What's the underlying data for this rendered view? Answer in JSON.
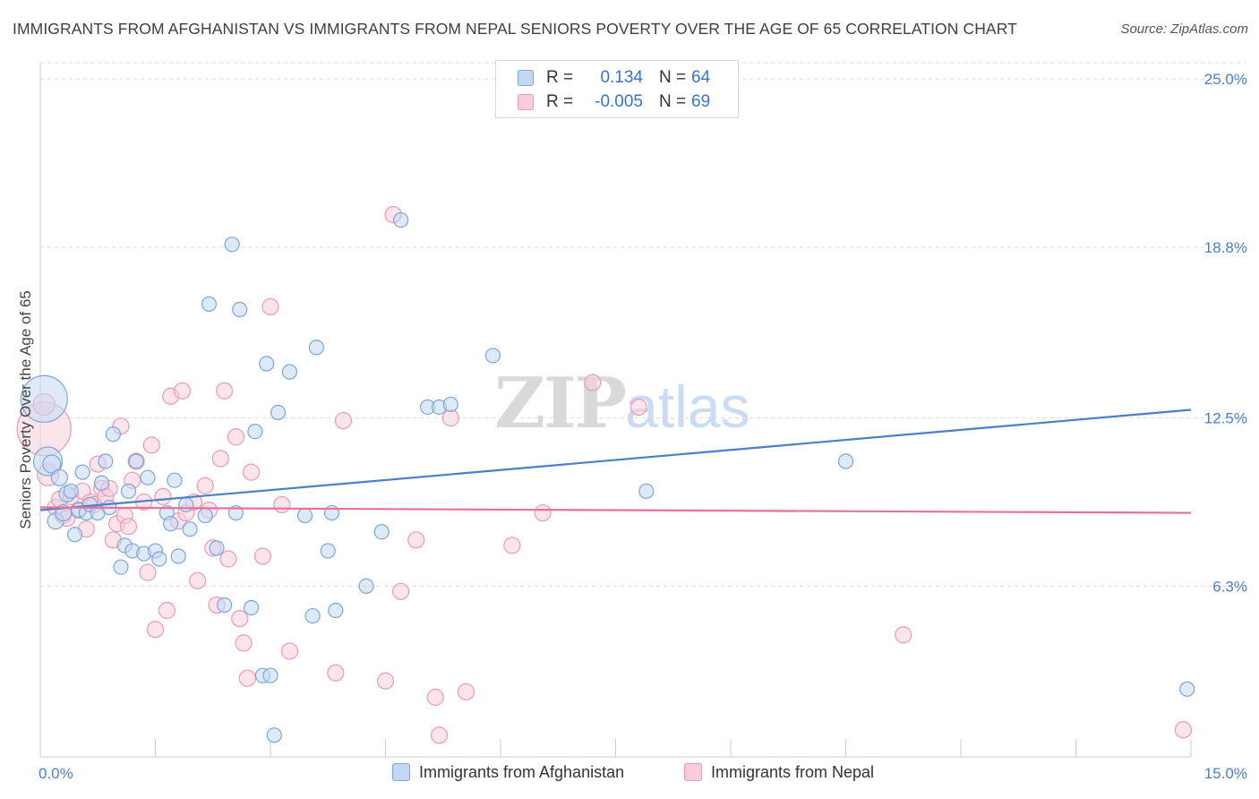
{
  "title": "IMMIGRANTS FROM AFGHANISTAN VS IMMIGRANTS FROM NEPAL SENIORS POVERTY OVER THE AGE OF 65 CORRELATION CHART",
  "source": "Source: ZipAtlas.com",
  "watermark": {
    "zip": "ZIP",
    "atlas": "atlas"
  },
  "legend": [
    {
      "r_label": "R =",
      "r_value": "0.134",
      "n_label": "N =",
      "n_value": "64",
      "color": "#7aa6e0",
      "fill": "#c5d8f3"
    },
    {
      "r_label": "R =",
      "r_value": "-0.005",
      "n_label": "N =",
      "n_value": "69",
      "color": "#ee9ab4",
      "fill": "#f8cdd9"
    }
  ],
  "bottom_legend": [
    "Immigrants from Afghanistan",
    "Immigrants from Nepal"
  ],
  "chart_data": {
    "type": "scatter",
    "title": "IMMIGRANTS FROM AFGHANISTAN VS IMMIGRANTS FROM NEPAL SENIORS POVERTY OVER THE AGE OF 65 CORRELATION CHART",
    "xlabel": "",
    "ylabel": "Seniors Poverty Over the Age of 65",
    "xlim": [
      0,
      15
    ],
    "ylim": [
      0,
      25.6
    ],
    "x_tick_labels": [
      "0.0%",
      "15.0%"
    ],
    "y_ticks": [
      6.3,
      12.5,
      18.8,
      25.0
    ],
    "y_tick_labels": [
      "6.3%",
      "12.5%",
      "18.8%",
      "25.0%"
    ],
    "grid": "horizontal dashed",
    "legend_position": "top-center",
    "series": [
      {
        "name": "Immigrants from Afghanistan",
        "color": "#4a7fcf",
        "fill": "#c5d8f3",
        "trend": {
          "x": [
            0,
            15
          ],
          "y": [
            9.1,
            12.8
          ]
        },
        "points": [
          [
            0.05,
            13.2,
            26
          ],
          [
            0.1,
            10.9,
            16
          ],
          [
            0.15,
            10.8,
            10
          ],
          [
            0.2,
            8.7,
            9
          ],
          [
            0.25,
            10.3,
            9
          ],
          [
            0.3,
            9.0,
            9
          ],
          [
            0.35,
            9.7,
            9
          ],
          [
            0.4,
            9.8,
            8
          ],
          [
            0.45,
            8.2,
            8
          ],
          [
            0.5,
            9.1,
            8
          ],
          [
            0.55,
            10.5,
            8
          ],
          [
            0.6,
            9.0,
            8
          ],
          [
            0.65,
            9.3,
            8
          ],
          [
            0.75,
            9.0,
            8
          ],
          [
            0.8,
            10.1,
            8
          ],
          [
            0.85,
            10.9,
            8
          ],
          [
            0.9,
            9.2,
            8
          ],
          [
            0.95,
            11.9,
            8
          ],
          [
            1.05,
            7.0,
            8
          ],
          [
            1.1,
            7.8,
            8
          ],
          [
            1.15,
            9.8,
            8
          ],
          [
            1.2,
            7.6,
            8
          ],
          [
            1.25,
            10.9,
            8
          ],
          [
            1.35,
            7.5,
            8
          ],
          [
            1.4,
            10.3,
            8
          ],
          [
            1.5,
            7.6,
            8
          ],
          [
            1.55,
            7.3,
            8
          ],
          [
            1.65,
            9.0,
            8
          ],
          [
            1.7,
            8.6,
            8
          ],
          [
            1.75,
            10.2,
            8
          ],
          [
            1.8,
            7.4,
            8
          ],
          [
            1.9,
            9.3,
            8
          ],
          [
            1.95,
            8.4,
            8
          ],
          [
            2.15,
            8.9,
            8
          ],
          [
            2.2,
            16.7,
            8
          ],
          [
            2.3,
            7.7,
            8
          ],
          [
            2.4,
            5.6,
            8
          ],
          [
            2.5,
            18.9,
            8
          ],
          [
            2.55,
            9.0,
            8
          ],
          [
            2.6,
            16.5,
            8
          ],
          [
            2.75,
            5.5,
            8
          ],
          [
            2.8,
            12.0,
            8
          ],
          [
            2.9,
            3.0,
            8
          ],
          [
            2.95,
            14.5,
            8
          ],
          [
            3.0,
            3.0,
            8
          ],
          [
            3.05,
            0.8,
            8
          ],
          [
            3.1,
            12.7,
            8
          ],
          [
            3.25,
            14.2,
            8
          ],
          [
            3.45,
            8.9,
            8
          ],
          [
            3.55,
            5.2,
            8
          ],
          [
            3.6,
            15.1,
            8
          ],
          [
            3.75,
            7.6,
            8
          ],
          [
            3.8,
            9.0,
            8
          ],
          [
            3.85,
            5.4,
            8
          ],
          [
            4.25,
            6.3,
            8
          ],
          [
            4.45,
            8.3,
            8
          ],
          [
            4.7,
            19.8,
            8
          ],
          [
            5.05,
            12.9,
            8
          ],
          [
            5.2,
            12.9,
            8
          ],
          [
            5.35,
            13.0,
            8
          ],
          [
            5.9,
            14.8,
            8
          ],
          [
            7.9,
            9.8,
            8
          ],
          [
            10.5,
            10.9,
            8
          ],
          [
            14.95,
            2.5,
            8
          ]
        ]
      },
      {
        "name": "Immigrants from Nepal",
        "color": "#e8709a",
        "fill": "#f8cdd9",
        "trend": {
          "x": [
            0,
            15
          ],
          "y": [
            9.2,
            9.0
          ]
        },
        "points": [
          [
            0.05,
            12.1,
            30
          ],
          [
            0.05,
            13.0,
            12
          ],
          [
            0.1,
            10.4,
            12
          ],
          [
            0.2,
            9.2,
            9
          ],
          [
            0.25,
            9.5,
            9
          ],
          [
            0.3,
            8.9,
            9
          ],
          [
            0.35,
            8.8,
            9
          ],
          [
            0.4,
            9.6,
            9
          ],
          [
            0.5,
            9.1,
            9
          ],
          [
            0.55,
            9.8,
            9
          ],
          [
            0.6,
            8.4,
            9
          ],
          [
            0.65,
            9.4,
            9
          ],
          [
            0.7,
            9.3,
            9
          ],
          [
            0.75,
            10.8,
            9
          ],
          [
            0.8,
            9.9,
            9
          ],
          [
            0.85,
            9.6,
            9
          ],
          [
            0.9,
            9.9,
            9
          ],
          [
            0.95,
            8.0,
            9
          ],
          [
            1.0,
            8.6,
            9
          ],
          [
            1.05,
            12.2,
            9
          ],
          [
            1.1,
            8.9,
            9
          ],
          [
            1.15,
            8.5,
            9
          ],
          [
            1.2,
            10.2,
            9
          ],
          [
            1.25,
            10.9,
            9
          ],
          [
            1.35,
            9.4,
            9
          ],
          [
            1.4,
            6.8,
            9
          ],
          [
            1.45,
            11.5,
            9
          ],
          [
            1.5,
            4.7,
            9
          ],
          [
            1.6,
            9.6,
            9
          ],
          [
            1.65,
            5.4,
            9
          ],
          [
            1.7,
            13.3,
            9
          ],
          [
            1.8,
            8.7,
            9
          ],
          [
            1.85,
            13.5,
            9
          ],
          [
            1.9,
            9.0,
            9
          ],
          [
            2.0,
            9.4,
            9
          ],
          [
            2.05,
            6.5,
            9
          ],
          [
            2.15,
            10.0,
            9
          ],
          [
            2.2,
            9.1,
            9
          ],
          [
            2.25,
            7.7,
            9
          ],
          [
            2.3,
            5.6,
            9
          ],
          [
            2.35,
            11.0,
            9
          ],
          [
            2.4,
            13.5,
            9
          ],
          [
            2.45,
            7.3,
            9
          ],
          [
            2.55,
            11.8,
            9
          ],
          [
            2.6,
            5.1,
            9
          ],
          [
            2.65,
            4.2,
            9
          ],
          [
            2.7,
            2.9,
            9
          ],
          [
            2.75,
            10.5,
            9
          ],
          [
            2.9,
            7.4,
            9
          ],
          [
            3.0,
            16.6,
            9
          ],
          [
            3.15,
            9.3,
            9
          ],
          [
            3.25,
            3.9,
            9
          ],
          [
            3.85,
            3.1,
            9
          ],
          [
            3.95,
            12.4,
            9
          ],
          [
            4.5,
            2.8,
            9
          ],
          [
            4.6,
            20.0,
            9
          ],
          [
            4.7,
            6.1,
            9
          ],
          [
            4.9,
            8.0,
            9
          ],
          [
            5.15,
            2.2,
            9
          ],
          [
            5.2,
            0.8,
            9
          ],
          [
            5.35,
            12.5,
            9
          ],
          [
            5.55,
            2.4,
            9
          ],
          [
            6.15,
            7.8,
            9
          ],
          [
            6.55,
            9.0,
            9
          ],
          [
            7.2,
            13.8,
            9
          ],
          [
            7.8,
            12.9,
            9
          ],
          [
            8.1,
            24.6,
            9
          ],
          [
            11.25,
            4.5,
            9
          ],
          [
            14.9,
            1.0,
            9
          ]
        ]
      }
    ]
  }
}
